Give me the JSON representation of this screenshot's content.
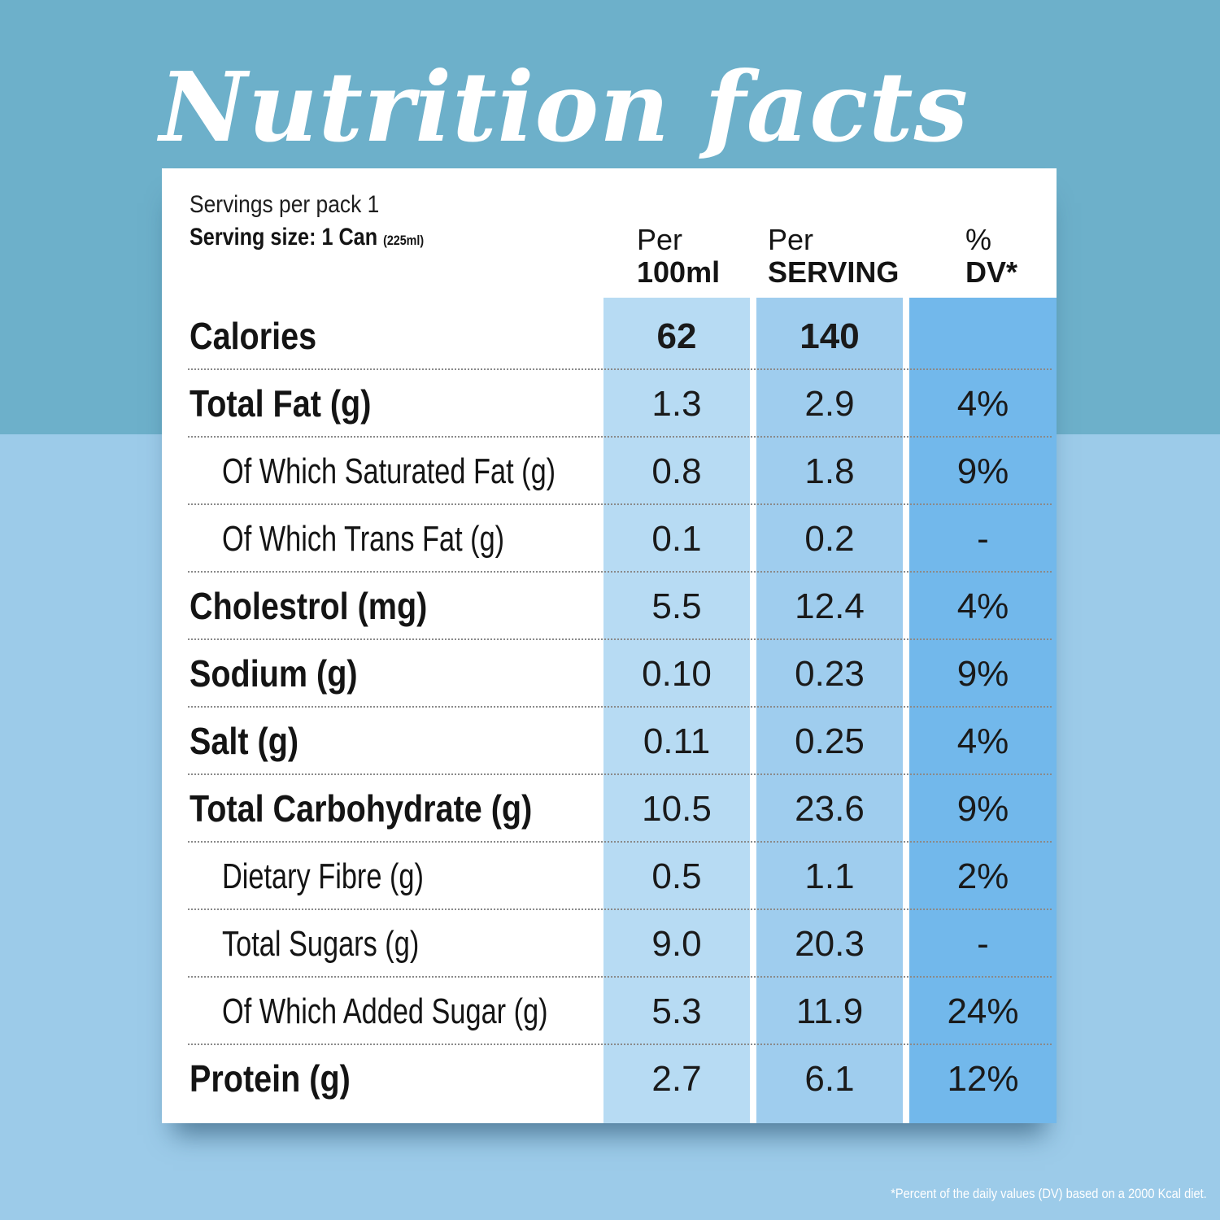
{
  "title": "Nutrition facts",
  "serving": {
    "per_pack": "Servings per pack 1",
    "size_label": "Serving size: 1 Can",
    "size_ml": "(225ml)"
  },
  "columns": [
    {
      "top": "Per",
      "bottom": "100ml"
    },
    {
      "top": "Per",
      "bottom": "SERVING"
    },
    {
      "top": "%",
      "bottom": "DV*"
    }
  ],
  "rows": [
    {
      "label": "Calories",
      "per100": "62",
      "serving": "140",
      "dv": ""
    },
    {
      "label": "Total Fat (g)",
      "per100": "1.3",
      "serving": "2.9",
      "dv": "4%"
    },
    {
      "label": "Of Which Saturated Fat (g)",
      "per100": "0.8",
      "serving": "1.8",
      "dv": "9%"
    },
    {
      "label": "Of Which Trans Fat (g)",
      "per100": "0.1",
      "serving": "0.2",
      "dv": "-"
    },
    {
      "label": "Cholestrol (mg)",
      "per100": "5.5",
      "serving": "12.4",
      "dv": "4%"
    },
    {
      "label": "Sodium (g)",
      "per100": "0.10",
      "serving": "0.23",
      "dv": "9%"
    },
    {
      "label": "Salt (g)",
      "per100": "0.11",
      "serving": "0.25",
      "dv": "4%"
    },
    {
      "label": "Total Carbohydrate (g)",
      "per100": "10.5",
      "serving": "23.6",
      "dv": "9%"
    },
    {
      "label": "Dietary Fibre (g)",
      "per100": "0.5",
      "serving": "1.1",
      "dv": "2%"
    },
    {
      "label": "Total Sugars (g)",
      "per100": "9.0",
      "serving": "20.3",
      "dv": "-"
    },
    {
      "label": "Of Which Added Sugar (g)",
      "per100": "5.3",
      "serving": "11.9",
      "dv": "24%"
    },
    {
      "label": "Protein (g)",
      "per100": "2.7",
      "serving": "6.1",
      "dv": "12%"
    }
  ],
  "footnote": "*Percent of the daily values (DV) based on a 2000 Kcal diet.",
  "colors": {
    "top_band": "#6db0ca",
    "bottom_band": "#9ccbe9",
    "col_per100": "#b7dbf3",
    "col_serving": "#9fcdee",
    "col_dv": "#72b8eb"
  }
}
